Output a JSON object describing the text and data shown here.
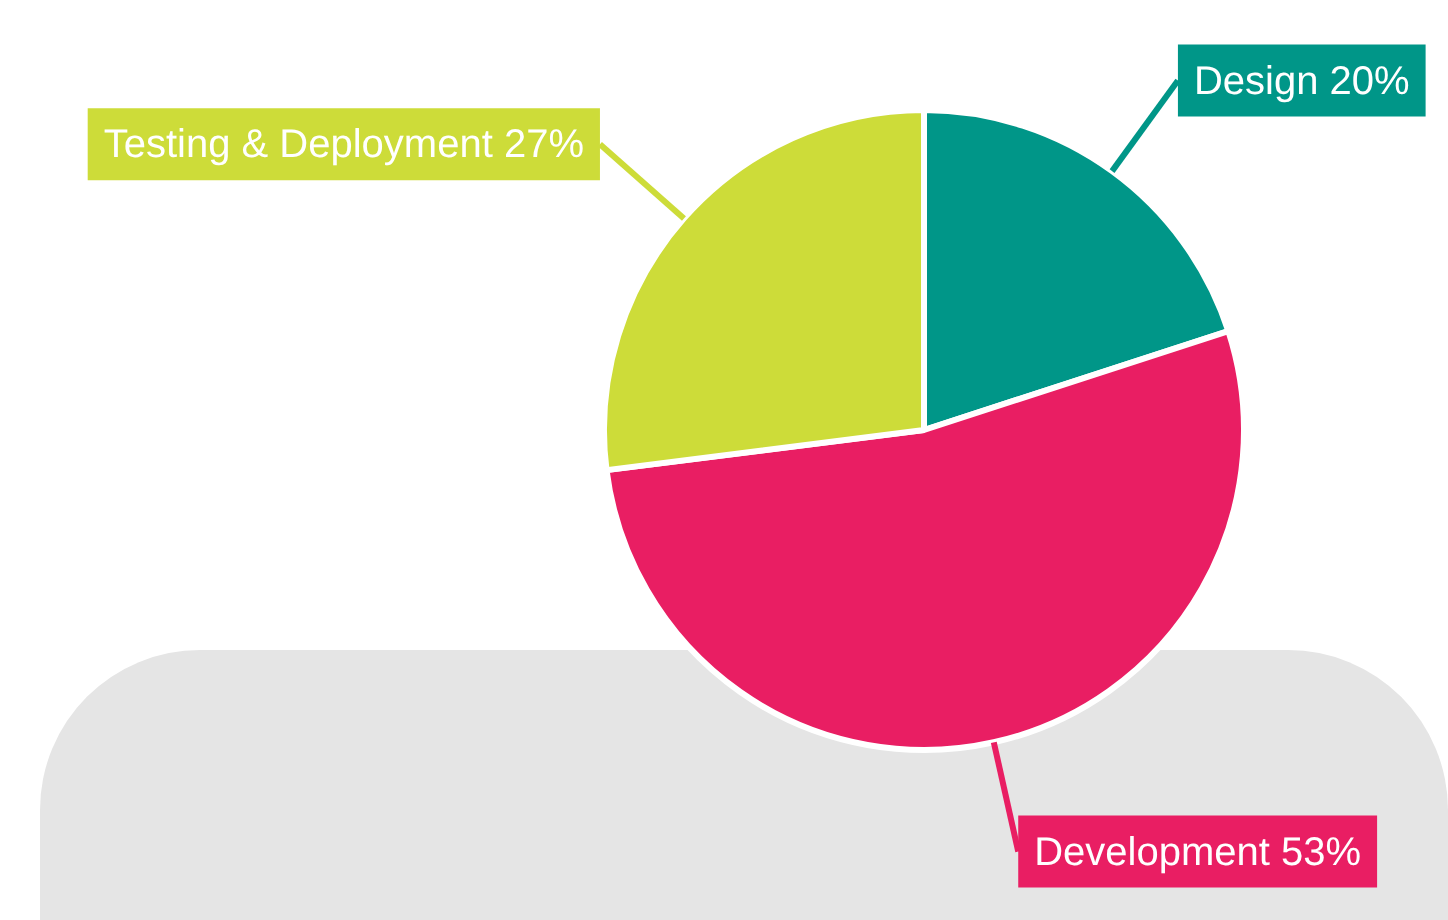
{
  "chart_data": {
    "type": "pie",
    "categories": [
      "Design",
      "Development",
      "Testing & Deployment"
    ],
    "values": [
      20,
      53,
      27
    ],
    "colors": [
      "#009688",
      "#e91e63",
      "#cddc39"
    ],
    "value_labels": [
      "20%",
      "53%",
      "27%"
    ],
    "legend": false
  }
}
